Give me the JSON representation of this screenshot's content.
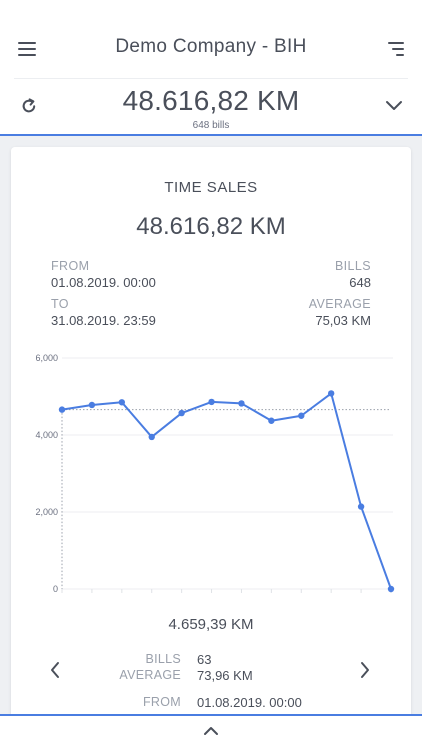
{
  "header": {
    "title": "Demo Company - BIH",
    "menu_icon": "hamburger-menu-icon",
    "filter_icon": "filter-lines-icon"
  },
  "summary": {
    "total": "48.616,82 KM",
    "bills": "648 bills",
    "refresh_icon": "refresh-icon",
    "expand_icon": "chevron-down-icon"
  },
  "card": {
    "title": "TIME SALES",
    "amount": "48.616,82 KM",
    "from_label": "FROM",
    "from_value": "01.08.2019. 00:00",
    "to_label": "TO",
    "to_value": "31.08.2019. 23:59",
    "bills_label": "BILLS",
    "bills_value": "648",
    "average_label": "AVERAGE",
    "average_value": "75,03 KM"
  },
  "chart_data": {
    "type": "line",
    "title": "",
    "xlabel": "",
    "ylabel": "",
    "y_ticks": [
      "6,000",
      "4,000",
      "2,000",
      "0"
    ],
    "ylim": [
      0,
      6000
    ],
    "x": [
      1,
      2,
      3,
      4,
      5,
      6,
      7,
      8,
      9,
      10,
      11,
      12
    ],
    "series": [
      {
        "values": [
          4659.39,
          4780,
          4850,
          3950,
          4570,
          4860,
          4820,
          4370,
          4500,
          5080,
          2140,
          0
        ]
      }
    ],
    "average_line": 4659.39,
    "line_color": "#4a7de1",
    "grid": "horizontal",
    "legend": "none"
  },
  "detail": {
    "amount": "4.659,39 KM",
    "bills_label": "BILLS",
    "bills_value": "63",
    "average_label": "AVERAGE",
    "average_value": "73,96 KM",
    "from_label": "FROM",
    "from_value": "01.08.2019. 00:00",
    "prev_icon": "chevron-left-icon",
    "next_icon": "chevron-right-icon"
  },
  "footer": {
    "expand_icon": "chevron-up-icon"
  },
  "colors": {
    "accent": "#4a7de1",
    "text": "#4a4f5a",
    "muted": "#9aa0ab",
    "background": "#eef0f3"
  }
}
